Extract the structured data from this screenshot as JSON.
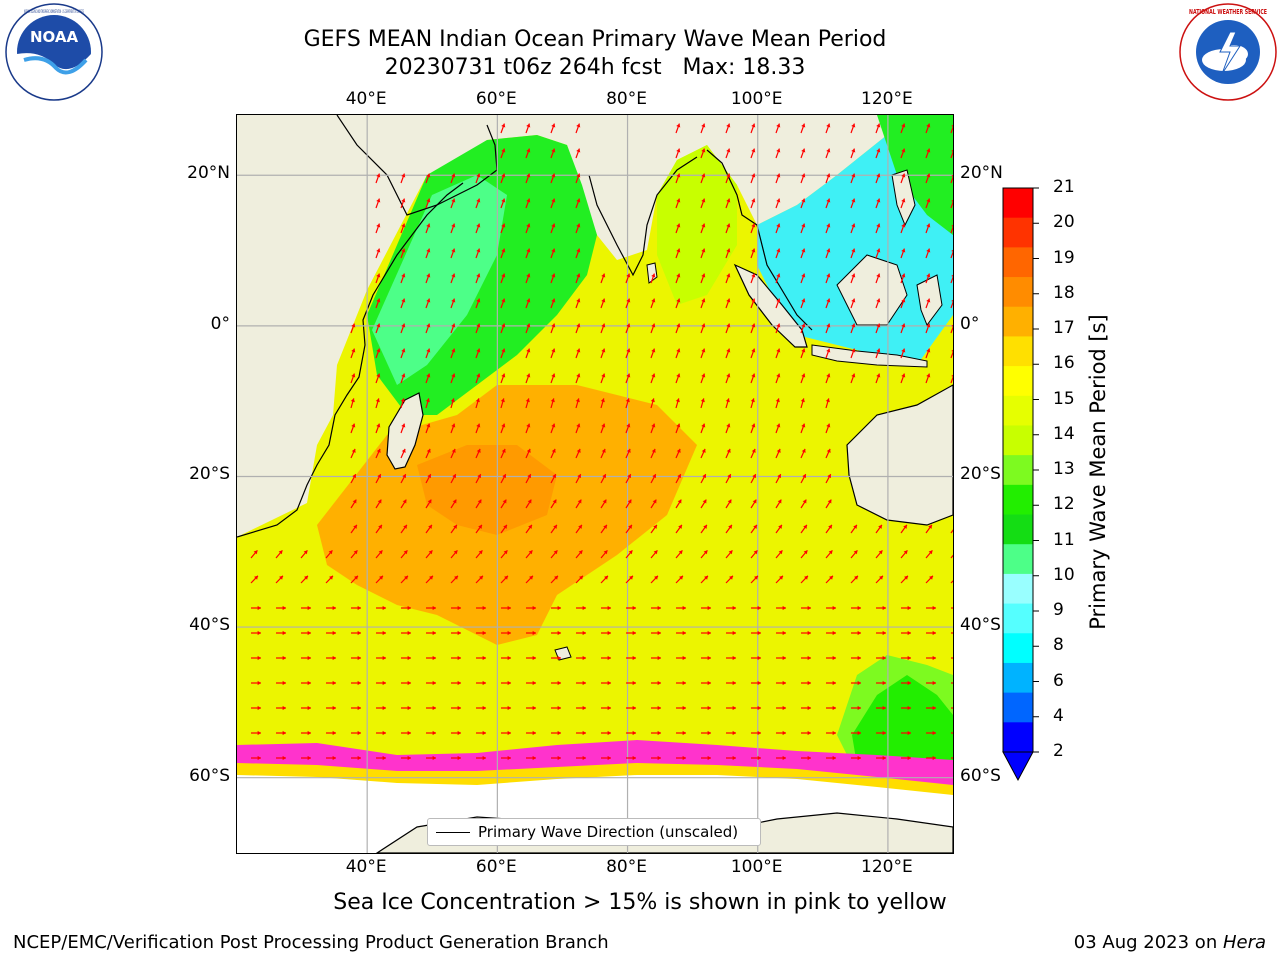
{
  "title": {
    "line1": "GEFS MEAN Indian Ocean Primary Wave Mean Period",
    "line2": "20230731 t06z 264h fcst   Max: 18.33"
  },
  "logos": {
    "noaa_text": "NOAA",
    "noaa_ring": "NATIONAL OCEANIC AND ATMOSPHERIC ADMINISTRATION · U.S. DEPARTMENT OF COMMERCE",
    "nws_ring": "NATIONAL WEATHER SERVICE"
  },
  "map": {
    "lon_ticks": [
      "40°E",
      "60°E",
      "80°E",
      "100°E",
      "120°E"
    ],
    "lat_ticks": [
      "20°N",
      "0°",
      "20°S",
      "40°S",
      "60°S"
    ],
    "lon_values": [
      40,
      60,
      80,
      100,
      120
    ],
    "lat_values": [
      20,
      0,
      -20,
      -40,
      -60
    ],
    "lon_range": [
      20,
      130
    ],
    "lat_range": [
      -70,
      28
    ],
    "colors": {
      "land": "#efeedd",
      "grid": "#b0b0b0",
      "arrow": "#ff0000",
      "coast": "#000000"
    }
  },
  "colorbar": {
    "label": "Primary Wave Mean Period [s]",
    "ticks": [
      "21",
      "20",
      "19",
      "18",
      "17",
      "16",
      "15",
      "14",
      "13",
      "12",
      "11",
      "10",
      "9",
      "8",
      "6",
      "4",
      "2"
    ],
    "colors": [
      "#ff0000",
      "#ff3300",
      "#ff6600",
      "#ff8c00",
      "#ffb000",
      "#ffe000",
      "#ffff00",
      "#e6ff00",
      "#c8ff00",
      "#7dfa20",
      "#22ee00",
      "#14dd14",
      "#4dff88",
      "#99ffff",
      "#55ffff",
      "#00ffff",
      "#00b3ff",
      "#0066ff",
      "#0000ff"
    ]
  },
  "legend": {
    "label": "Primary Wave Direction (unscaled)"
  },
  "notes": {
    "ice": "Sea Ice Concentration > 15% is shown in pink to yellow",
    "footer_left": "NCEP/EMC/Verification Post Processing Product Generation Branch",
    "footer_date": "03 Aug 2023 on ",
    "footer_machine": "Hera"
  }
}
